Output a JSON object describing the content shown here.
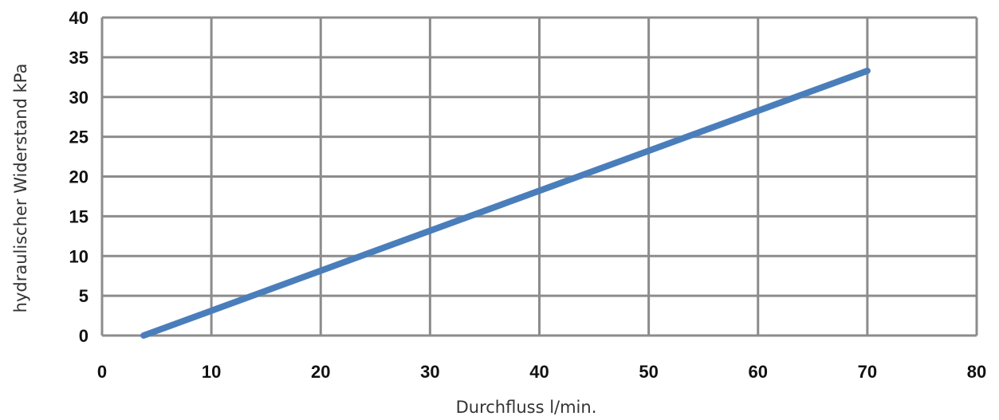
{
  "chart_data": {
    "type": "line",
    "title": "",
    "xlabel": "Durchfluss l/min.",
    "ylabel": "hydraulischer Widerstand kPa",
    "xlim": [
      0,
      80
    ],
    "ylim": [
      0,
      40
    ],
    "xticks": [
      0,
      10,
      20,
      30,
      40,
      50,
      60,
      70,
      80
    ],
    "yticks": [
      0,
      5,
      10,
      15,
      20,
      25,
      30,
      35,
      40
    ],
    "grid": true,
    "legend": "none",
    "series": [
      {
        "color": "#4a7ebb",
        "x": [
          3.8,
          70
        ],
        "y": [
          0,
          33.3
        ]
      }
    ],
    "colors": {
      "grid": "#8c8c8c",
      "line": "#4a7ebb",
      "tick_text": "#111111",
      "axis_title": "#333333"
    }
  }
}
